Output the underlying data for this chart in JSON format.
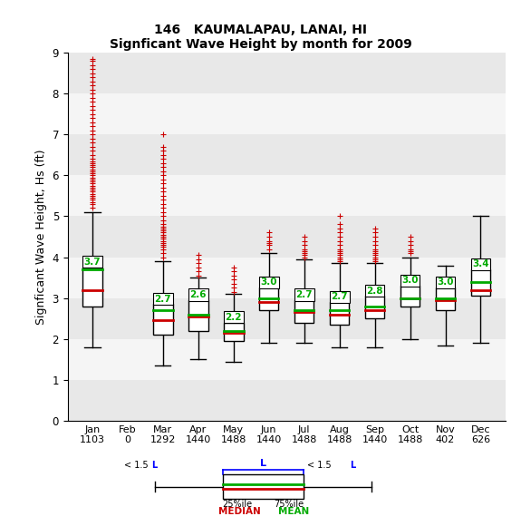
{
  "title1": "146   KAUMALAPAU, LANAI, HI",
  "title2": "Signficant Wave Height by month for 2009",
  "ylabel": "Signficant Wave Height, Hs (ft)",
  "ylim": [
    0.0,
    9.0
  ],
  "yticks": [
    0.0,
    1.0,
    2.0,
    3.0,
    4.0,
    5.0,
    6.0,
    7.0,
    8.0,
    9.0
  ],
  "months": [
    "Jan",
    "Feb",
    "Mar",
    "Apr",
    "May",
    "Jun",
    "Jul",
    "Aug",
    "Sep",
    "Oct",
    "Nov",
    "Dec"
  ],
  "counts": [
    1103,
    0,
    1292,
    1440,
    1488,
    1440,
    1488,
    1488,
    1440,
    1488,
    402,
    626
  ],
  "box_data": {
    "Jan": {
      "q1": 2.8,
      "median": 3.2,
      "mean": 3.7,
      "q3": 3.75,
      "whislo": 1.8,
      "whishi": 5.1
    },
    "Feb": null,
    "Mar": {
      "q1": 2.1,
      "median": 2.45,
      "mean": 2.7,
      "q3": 2.85,
      "whislo": 1.35,
      "whishi": 3.9
    },
    "Apr": {
      "q1": 2.2,
      "median": 2.55,
      "mean": 2.6,
      "q3": 2.95,
      "whislo": 1.5,
      "whishi": 3.5
    },
    "May": {
      "q1": 1.95,
      "median": 2.15,
      "mean": 2.2,
      "q3": 2.4,
      "whislo": 1.45,
      "whishi": 3.1
    },
    "Jun": {
      "q1": 2.7,
      "median": 2.9,
      "mean": 3.0,
      "q3": 3.25,
      "whislo": 1.9,
      "whishi": 4.1
    },
    "Jul": {
      "q1": 2.4,
      "median": 2.65,
      "mean": 2.7,
      "q3": 2.95,
      "whislo": 1.9,
      "whishi": 3.95
    },
    "Aug": {
      "q1": 2.35,
      "median": 2.6,
      "mean": 2.7,
      "q3": 2.9,
      "whislo": 1.8,
      "whishi": 3.85
    },
    "Sep": {
      "q1": 2.5,
      "median": 2.7,
      "mean": 2.8,
      "q3": 3.05,
      "whislo": 1.8,
      "whishi": 3.85
    },
    "Oct": {
      "q1": 2.8,
      "median": 3.0,
      "mean": 3.0,
      "q3": 3.3,
      "whislo": 2.0,
      "whishi": 4.0
    },
    "Nov": {
      "q1": 2.7,
      "median": 2.95,
      "mean": 3.0,
      "q3": 3.25,
      "whislo": 1.85,
      "whishi": 3.8
    },
    "Dec": {
      "q1": 3.05,
      "median": 3.2,
      "mean": 3.4,
      "q3": 3.7,
      "whislo": 1.9,
      "whishi": 5.0
    }
  },
  "outliers": {
    "Jan": [
      5.2,
      5.3,
      5.35,
      5.4,
      5.45,
      5.5,
      5.55,
      5.6,
      5.65,
      5.7,
      5.75,
      5.8,
      5.85,
      5.9,
      5.95,
      6.0,
      6.05,
      6.1,
      6.15,
      6.2,
      6.25,
      6.3,
      6.35,
      6.4,
      6.5,
      6.6,
      6.7,
      6.8,
      6.9,
      7.0,
      7.1,
      7.2,
      7.3,
      7.4,
      7.5,
      7.6,
      7.7,
      7.8,
      7.9,
      8.0,
      8.1,
      8.2,
      8.3,
      8.4,
      8.5,
      8.6,
      8.7,
      8.8,
      8.85
    ],
    "Mar": [
      4.0,
      4.1,
      4.2,
      4.25,
      4.3,
      4.35,
      4.4,
      4.45,
      4.5,
      4.55,
      4.6,
      4.65,
      4.7,
      4.75,
      4.8,
      4.9,
      5.0,
      5.1,
      5.2,
      5.3,
      5.4,
      5.5,
      5.6,
      5.7,
      5.8,
      5.9,
      6.0,
      6.1,
      6.2,
      6.3,
      6.4,
      6.5,
      6.6,
      6.7,
      7.0
    ],
    "Apr": [
      3.55,
      3.65,
      3.75,
      3.85,
      3.95,
      4.05
    ],
    "May": [
      3.15,
      3.25,
      3.35,
      3.45,
      3.55,
      3.65,
      3.75
    ],
    "Jun": [
      4.2,
      4.3,
      4.35,
      4.4,
      4.5,
      4.6
    ],
    "Jul": [
      4.0,
      4.05,
      4.1,
      4.15,
      4.2,
      4.3,
      4.4,
      4.5
    ],
    "Aug": [
      3.9,
      3.95,
      4.0,
      4.05,
      4.1,
      4.15,
      4.2,
      4.3,
      4.4,
      4.5,
      4.6,
      4.7,
      4.8,
      5.0
    ],
    "Sep": [
      3.9,
      3.95,
      4.0,
      4.05,
      4.1,
      4.15,
      4.2,
      4.3,
      4.4,
      4.5,
      4.6,
      4.7
    ],
    "Oct": [
      4.1,
      4.15,
      4.2,
      4.3,
      4.4,
      4.5
    ],
    "Nov": [],
    "Dec": []
  },
  "bg_bands": [
    [
      0.0,
      1.0,
      "#e8e8e8"
    ],
    [
      1.0,
      2.0,
      "#f5f5f5"
    ],
    [
      2.0,
      3.0,
      "#e8e8e8"
    ],
    [
      3.0,
      4.0,
      "#f5f5f5"
    ],
    [
      4.0,
      5.0,
      "#e8e8e8"
    ],
    [
      5.0,
      6.0,
      "#f5f5f5"
    ],
    [
      6.0,
      7.0,
      "#e8e8e8"
    ],
    [
      7.0,
      8.0,
      "#f5f5f5"
    ],
    [
      8.0,
      9.0,
      "#e8e8e8"
    ]
  ],
  "box_facecolor": "white",
  "median_color": "#cc0000",
  "mean_color": "#00aa00",
  "whisker_color": "black",
  "box_edgecolor": "black",
  "outlier_color": "#cc0000"
}
